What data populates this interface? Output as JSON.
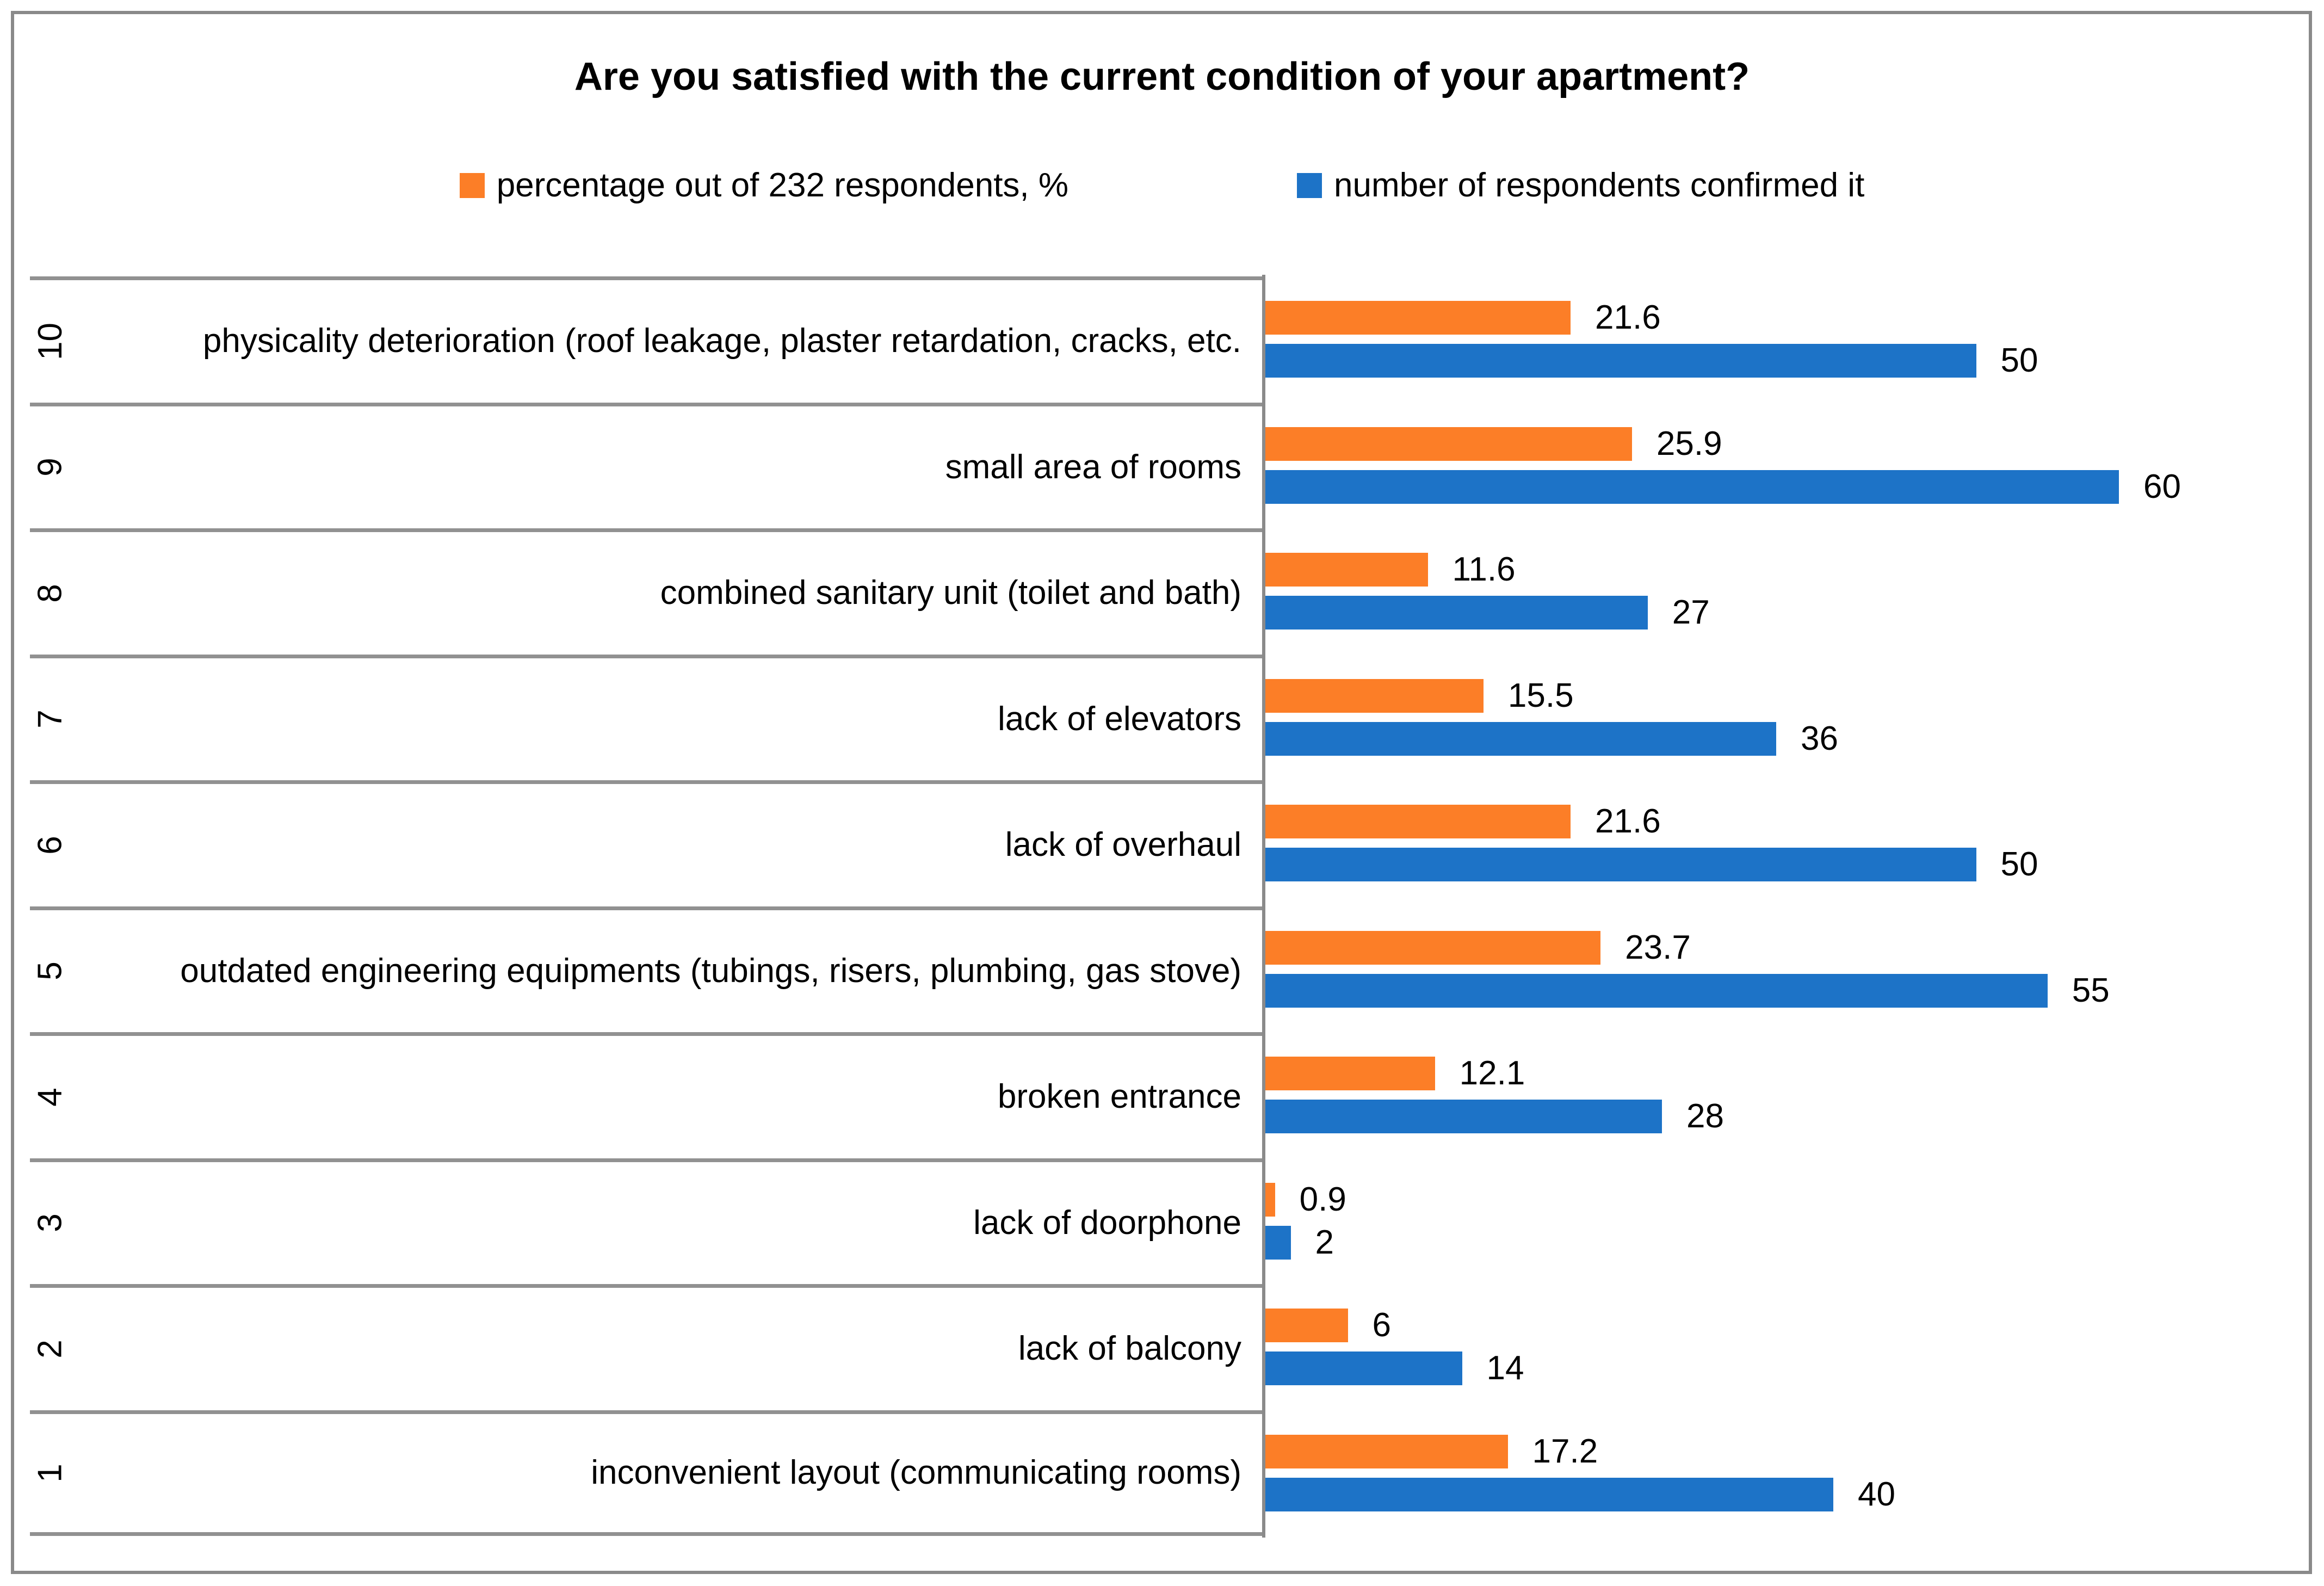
{
  "chart_data": {
    "type": "bar",
    "orientation": "horizontal",
    "title": "Are you satisfied with the current condition of your apartment?",
    "row_numbers": [
      "10",
      "9",
      "8",
      "7",
      "6",
      "5",
      "4",
      "3",
      "2",
      "1"
    ],
    "categories": [
      "physicality deterioration (roof leakage, plaster retardation, cracks, etc.",
      "small area of rooms",
      "combined sanitary unit (toilet and bath)",
      "lack of elevators",
      "lack of overhaul",
      "outdated engineering equipments (tubings, risers, plumbing, gas stove)",
      "broken entrance",
      "lack of doorphone",
      "lack of balcony",
      "inconvenient layout (communicating rooms)"
    ],
    "series": [
      {
        "name": "percentage out of 232 respondents, %",
        "color": "#FC7E27",
        "values": [
          21.6,
          25.9,
          11.6,
          15.5,
          21.6,
          23.7,
          12.1,
          0.9,
          6,
          17.2
        ]
      },
      {
        "name": "number of respondents confirmed it",
        "color": "#1D73C7",
        "values": [
          50,
          60,
          27,
          36,
          50,
          55,
          28,
          2,
          14,
          40
        ]
      }
    ],
    "value_axis_max": 60,
    "gridlines": false,
    "value_labels": true,
    "legend_position": "top"
  },
  "colors": {
    "series_orange": "#FC7E27",
    "series_blue": "#1D73C7",
    "table_line": "#919191",
    "outer_border": "#8A8A8A",
    "background": "#FFFFFF",
    "text": "#000000"
  }
}
